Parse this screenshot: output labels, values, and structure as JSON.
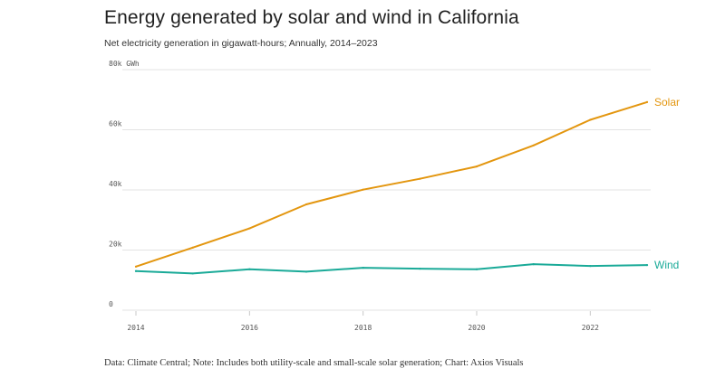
{
  "header": {
    "title": "Energy generated by solar and wind in California",
    "subtitle": "Net electricity generation in gigawatt-hours; Annually, 2014–2023"
  },
  "footer": {
    "source": "Data: Climate Central; Note: Includes both utility-scale and small-scale solar generation; Chart: Axios Visuals"
  },
  "chart_data": {
    "type": "line",
    "title": "Energy generated by solar and wind in California",
    "subtitle": "Net electricity generation in gigawatt-hours; Annually, 2014–2023",
    "xlabel": "",
    "ylabel": "",
    "x": [
      2014,
      2015,
      2016,
      2017,
      2018,
      2019,
      2020,
      2021,
      2022,
      2023
    ],
    "xlim": [
      2014,
      2023
    ],
    "ylim": [
      0,
      80000
    ],
    "yticks": [
      {
        "value": 0,
        "label": "0"
      },
      {
        "value": 20000,
        "label": "20k"
      },
      {
        "value": 40000,
        "label": "40k"
      },
      {
        "value": 60000,
        "label": "60k"
      },
      {
        "value": 80000,
        "label": "80k GWh"
      }
    ],
    "xticks": [
      {
        "value": 2014,
        "label": "2014"
      },
      {
        "value": 2016,
        "label": "2016"
      },
      {
        "value": 2018,
        "label": "2018"
      },
      {
        "value": 2020,
        "label": "2020"
      },
      {
        "value": 2022,
        "label": "2022"
      }
    ],
    "grid": true,
    "legend": "direct labels at line ends",
    "series": [
      {
        "name": "Solar",
        "color": "#e3960f",
        "values": [
          14500,
          20800,
          27200,
          35200,
          40100,
          43700,
          47800,
          54800,
          63300,
          69200
        ]
      },
      {
        "name": "Wind",
        "color": "#1aaa98",
        "values": [
          13000,
          12200,
          13600,
          12800,
          14100,
          13800,
          13600,
          15300,
          14700,
          15000
        ]
      }
    ]
  }
}
